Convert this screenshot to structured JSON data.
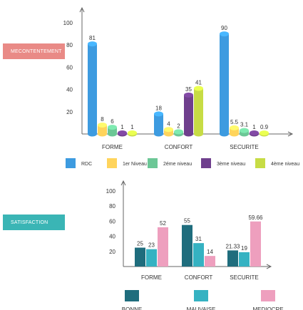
{
  "colors": {
    "rdc": "#3d9be0",
    "n1": "#ffd45c",
    "n2": "#6cc796",
    "n3": "#6f3f8d",
    "n4": "#c7dc45",
    "bonne": "#1f6d7d",
    "mauvaise": "#35b2c2",
    "mediocre": "#ee9fbe"
  },
  "labels": {
    "mecontentement": "MECONTENTEMENT",
    "satisfaction": "SATISFACTION"
  },
  "chart_data": [
    {
      "type": "bar",
      "categories": [
        "FORME",
        "CONFORT",
        "SECURITE"
      ],
      "ylim": [
        0,
        100
      ],
      "yticks": [
        20,
        40,
        60,
        80,
        100
      ],
      "series": [
        {
          "name": "RDC",
          "values": [
            81,
            18,
            90
          ]
        },
        {
          "name": "1er Niveau",
          "values": [
            8,
            4,
            5.5
          ]
        },
        {
          "name": "2éme niveau",
          "values": [
            6,
            2,
            3.1
          ]
        },
        {
          "name": "3ème niveau",
          "values": [
            1,
            35,
            1
          ]
        },
        {
          "name": "4ème niveau",
          "values": [
            1,
            41,
            0.9
          ]
        }
      ]
    },
    {
      "type": "bar",
      "categories": [
        "FORME",
        "CONFORT",
        "SECURITE"
      ],
      "ylim": [
        0,
        100
      ],
      "yticks": [
        20,
        40,
        60,
        80,
        100
      ],
      "series": [
        {
          "name": "BONNE",
          "values": [
            25,
            55,
            21.33
          ]
        },
        {
          "name": "MAUVAISE",
          "values": [
            23,
            31,
            19
          ]
        },
        {
          "name": "MEDIOCRE",
          "values": [
            52,
            14,
            59.66
          ]
        }
      ]
    }
  ]
}
